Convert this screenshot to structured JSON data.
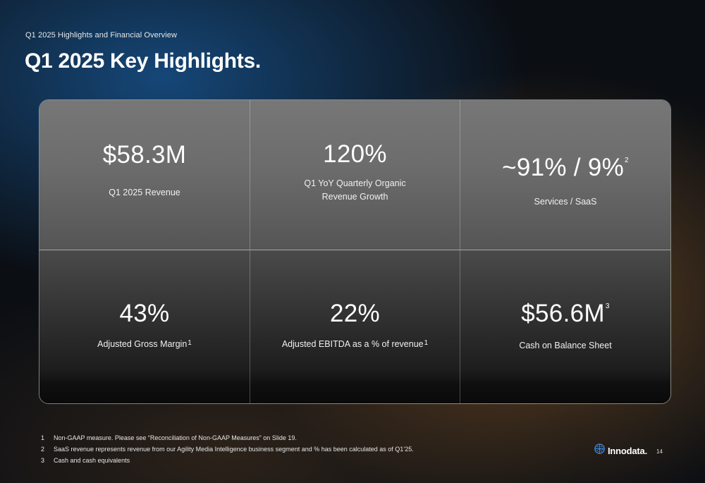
{
  "header": {
    "subtitle": "Q1 2025 Highlights and Financial Overview",
    "title": "Q1 2025 Key Highlights."
  },
  "highlights": [
    {
      "value": "$58.3M",
      "value_sup": "",
      "label_lines": [
        "Q1 2025 Revenue"
      ],
      "label_sup": ""
    },
    {
      "value": "120%",
      "value_sup": "",
      "label_lines": [
        "Q1 YoY Quarterly Organic",
        "Revenue Growth"
      ],
      "label_sup": ""
    },
    {
      "value": "~91% / 9%",
      "value_sup": "2",
      "label_lines": [
        "Services / SaaS"
      ],
      "label_sup": ""
    },
    {
      "value": "43%",
      "value_sup": "",
      "label_lines": [
        "Adjusted Gross Margin"
      ],
      "label_sup": "1"
    },
    {
      "value": "22%",
      "value_sup": "",
      "label_lines": [
        "Adjusted EBITDA as a % of revenue"
      ],
      "label_sup": "1"
    },
    {
      "value": "$56.6M",
      "value_sup": "3",
      "label_lines": [
        "Cash on Balance Sheet"
      ],
      "label_sup": ""
    }
  ],
  "footnotes": [
    {
      "num": "1",
      "text": "Non-GAAP measure. Please see “Reconciliation of Non-GAAP Measures” on Slide 19."
    },
    {
      "num": "2",
      "text": "SaaS revenue represents revenue from our Agility Media Intelligence business segment and % has been calculated as of Q1’25."
    },
    {
      "num": "3",
      "text": "Cash and cash equivalents"
    }
  ],
  "logo": {
    "text": "Innodata.",
    "icon": "innodata-globe-icon",
    "color": "#3b82d6"
  },
  "page_number": "14"
}
